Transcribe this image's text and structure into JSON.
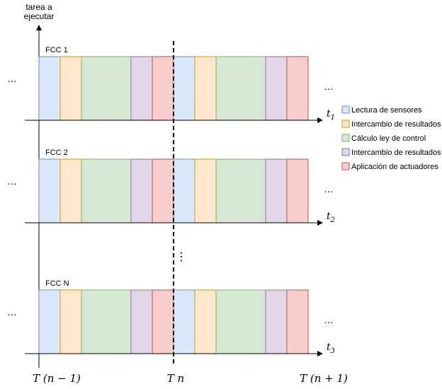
{
  "axis_label_line1": "tarea a",
  "axis_label_line2": "ejecutar",
  "rows": [
    {
      "label": "FCC 1",
      "t_base": "t",
      "t_sub": "1"
    },
    {
      "label": "FCC 2",
      "t_base": "t",
      "t_sub": "2"
    },
    {
      "label": "FCC N",
      "t_base": "t",
      "t_sub": "3"
    }
  ],
  "ellipsis": "…",
  "vertical_ellipsis": "⋮",
  "blocks": [
    {
      "name": "lectura-de-sensores",
      "fill": "#dae8fc",
      "stroke": "#6c8ebf"
    },
    {
      "name": "intercambio-de-resultados",
      "fill": "#ffe6cc",
      "stroke": "#d79b00"
    },
    {
      "name": "calculo-ley-de-control",
      "fill": "#d5e8d4",
      "stroke": "#82b366"
    },
    {
      "name": "intercambio-de-resultados-2",
      "fill": "#e1d5e7",
      "stroke": "#9673a6"
    },
    {
      "name": "aplicacion-de-actuadores",
      "fill": "#f8cecc",
      "stroke": "#b85450"
    }
  ],
  "legend": [
    {
      "label": "Lectura de sensores",
      "fill": "#dae8fc",
      "stroke": "#6c8ebf"
    },
    {
      "label": "Intercambio de resultados",
      "fill": "#ffe6cc",
      "stroke": "#d79b00"
    },
    {
      "label": "Cálculo ley de control",
      "fill": "#d5e8d4",
      "stroke": "#82b366"
    },
    {
      "label": "Intercambio de resultados",
      "fill": "#e1d5e7",
      "stroke": "#9673a6"
    },
    {
      "label": "Aplicación de actuadores",
      "fill": "#f8cecc",
      "stroke": "#b85450"
    }
  ],
  "time_labels": {
    "left": "T (n − 1)",
    "middle": "T n",
    "right": "T (n + 1)"
  }
}
